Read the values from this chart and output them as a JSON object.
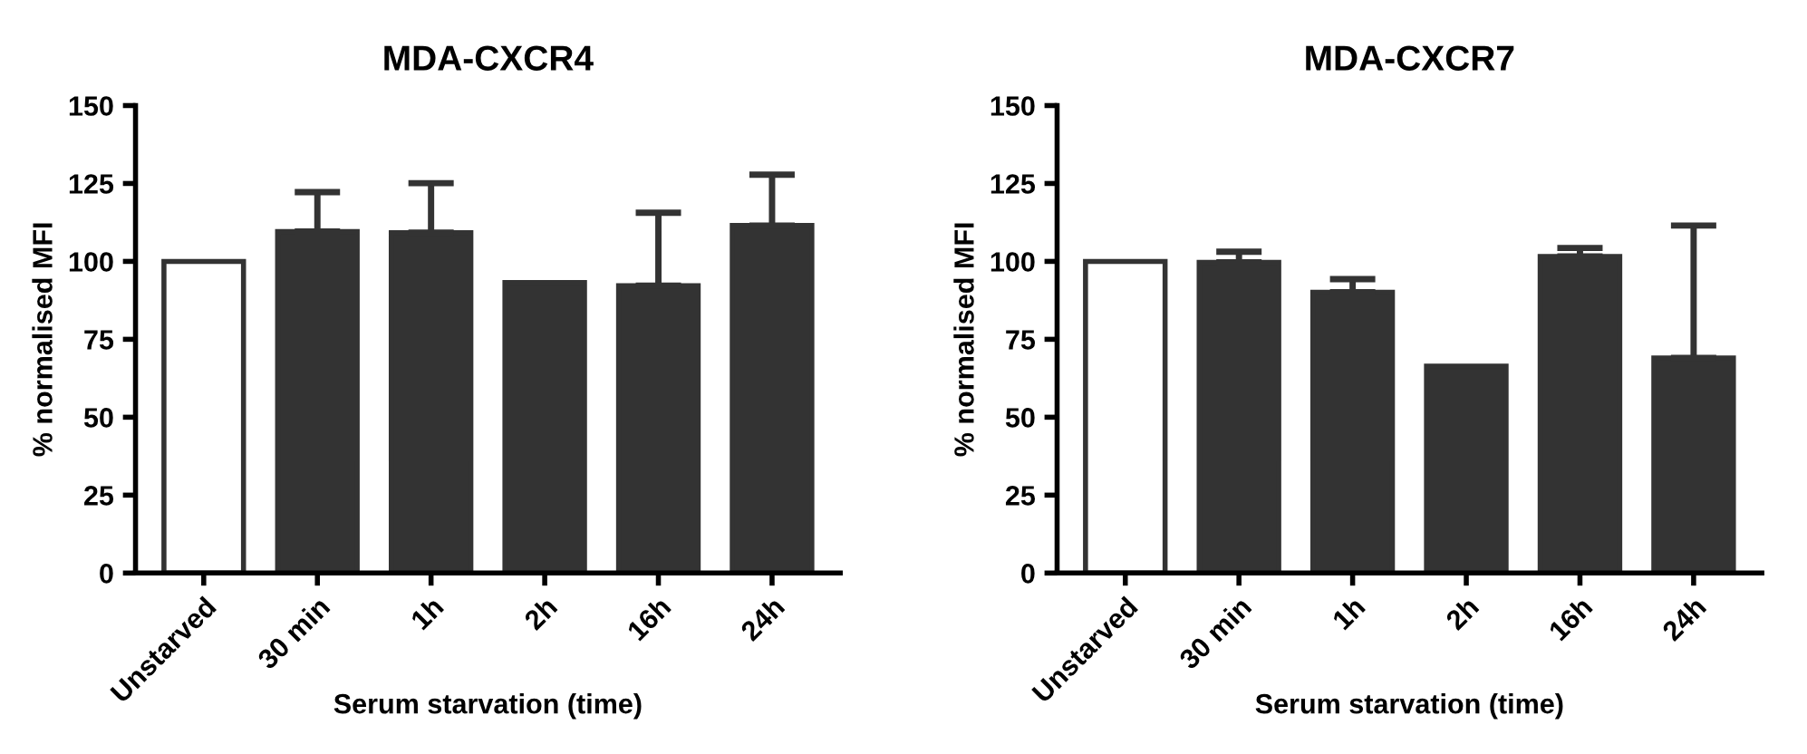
{
  "chart_data": [
    {
      "type": "bar",
      "title": "MDA-CXCR4",
      "xlabel": "Serum starvation (time)",
      "ylabel": "% normalised MFI",
      "categories": [
        "Unstarved",
        "30 min",
        "1h",
        "2h",
        "16h",
        "24h"
      ],
      "values": [
        100,
        109.6,
        109.2,
        93.2,
        92.2,
        111.5
      ],
      "errors": [
        null,
        [
          109.6,
          122.2
        ],
        [
          109.2,
          125.1
        ],
        null,
        [
          92.2,
          115.6
        ],
        [
          111.5,
          127.8
        ]
      ],
      "colors": [
        "#ffffff",
        "#333333",
        "#333333",
        "#333333",
        "#333333",
        "#333333"
      ],
      "ylim": [
        0,
        150
      ],
      "yticks": [
        0,
        25,
        50,
        75,
        100,
        125,
        150
      ],
      "grid": false
    },
    {
      "type": "bar",
      "title": "MDA-CXCR7",
      "xlabel": "Serum starvation (time)",
      "ylabel": "% normalised MFI",
      "categories": [
        "Unstarved",
        "30 min",
        "1h",
        "2h",
        "16h",
        "24h"
      ],
      "values": [
        100,
        99.7,
        90.1,
        66.4,
        101.6,
        69
      ],
      "errors": [
        null,
        [
          99.7,
          103.1
        ],
        [
          90.1,
          94.3
        ],
        null,
        [
          101.6,
          104.3
        ],
        [
          69,
          111.5
        ]
      ],
      "colors": [
        "#ffffff",
        "#333333",
        "#333333",
        "#333333",
        "#333333",
        "#333333"
      ],
      "ylim": [
        0,
        150
      ],
      "yticks": [
        0,
        25,
        50,
        75,
        100,
        125,
        150
      ],
      "grid": false
    }
  ]
}
